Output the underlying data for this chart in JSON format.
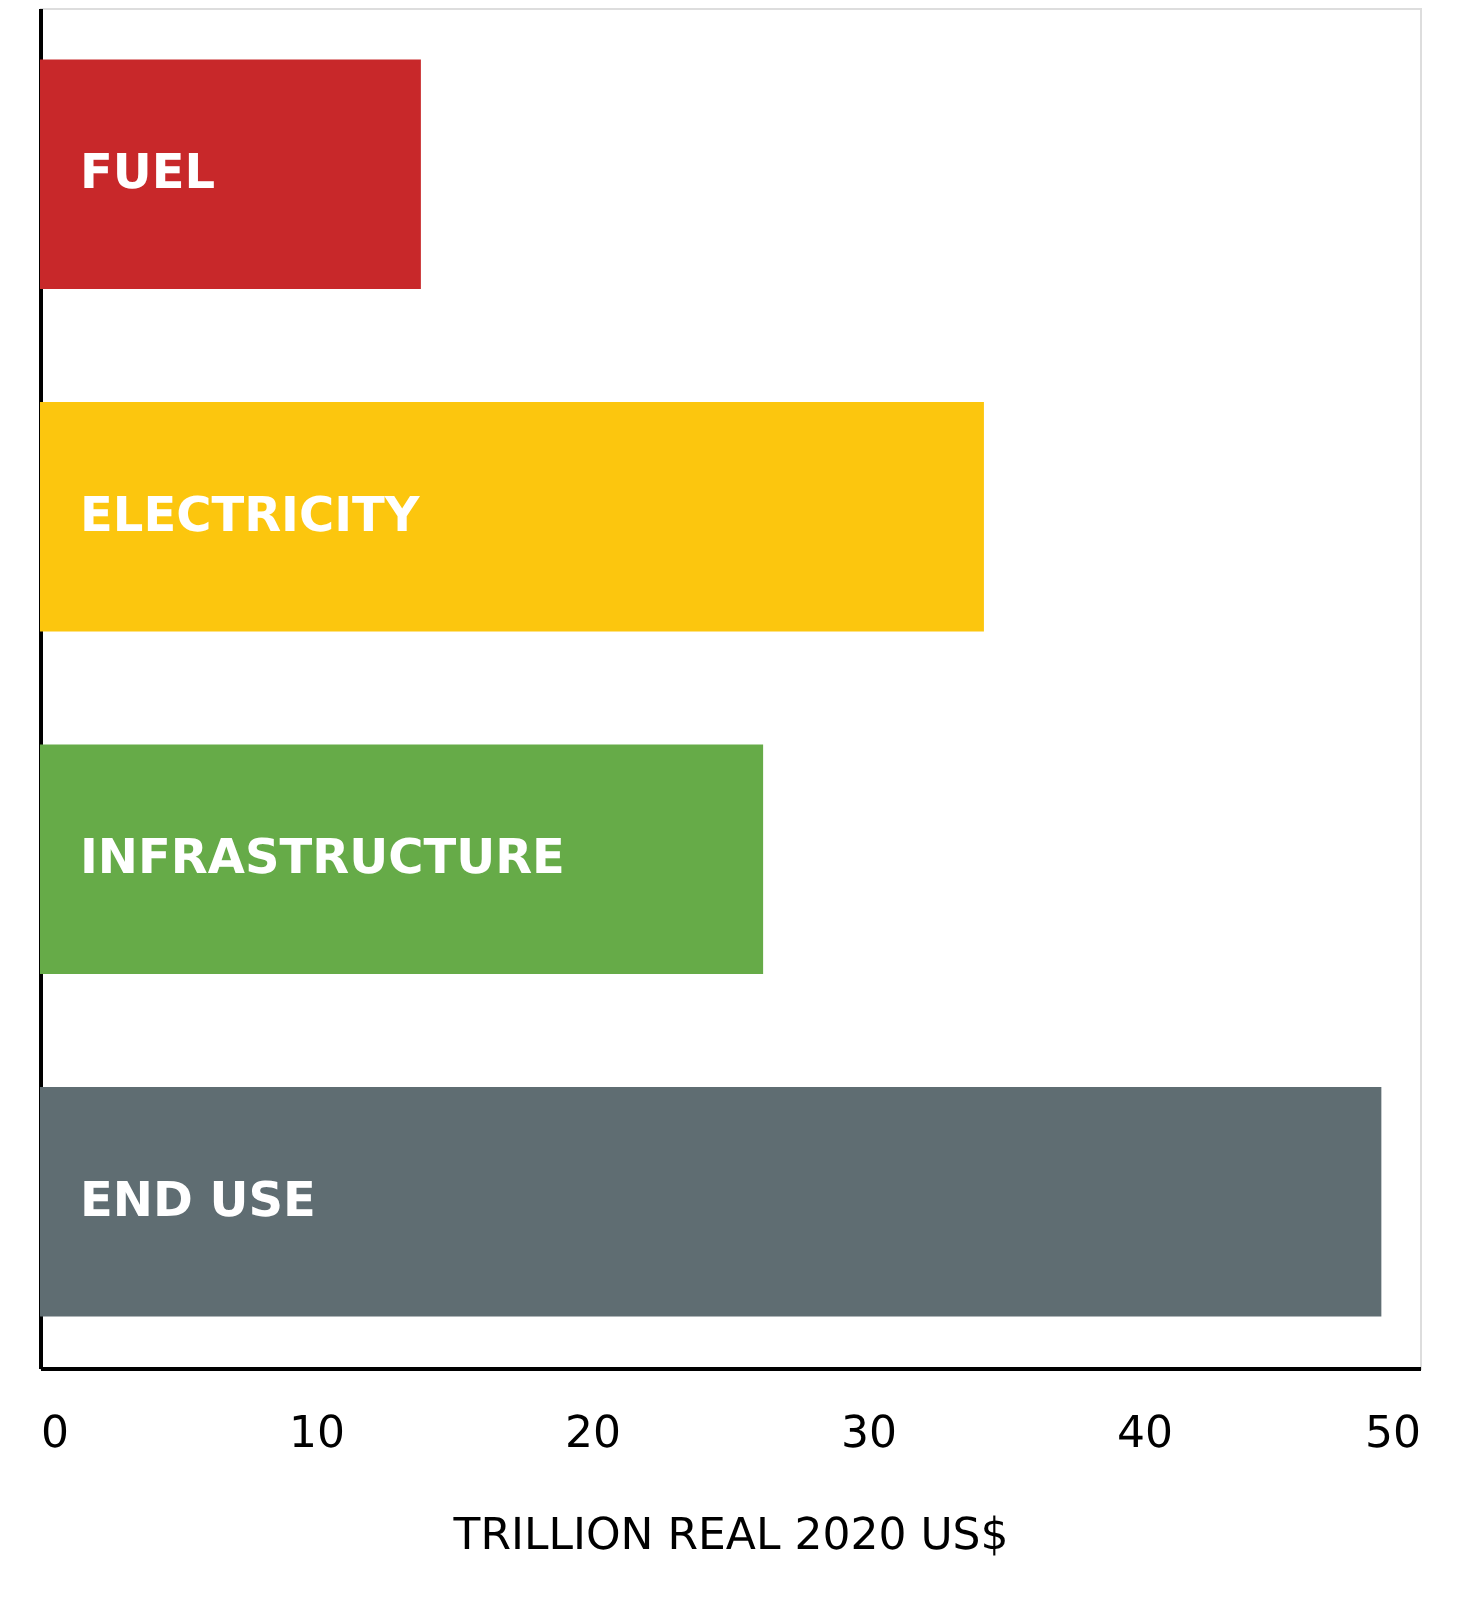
{
  "chart_data": {
    "type": "bar",
    "orientation": "horizontal",
    "categories": [
      "FUEL",
      "ELECTRICITY",
      "INFRASTRUCTURE",
      "END USE"
    ],
    "values": [
      13.8,
      34.2,
      26.2,
      48.6
    ],
    "colors": [
      "#c8282a",
      "#fcc60e",
      "#66ab48",
      "#5f6d72"
    ],
    "xlabel": "TRILLION REAL 2020 US$",
    "xlim": [
      0,
      50
    ],
    "xticks": [
      0,
      10,
      20,
      30,
      40,
      50
    ],
    "grid": false,
    "legend": false,
    "tick_labels": "x"
  }
}
